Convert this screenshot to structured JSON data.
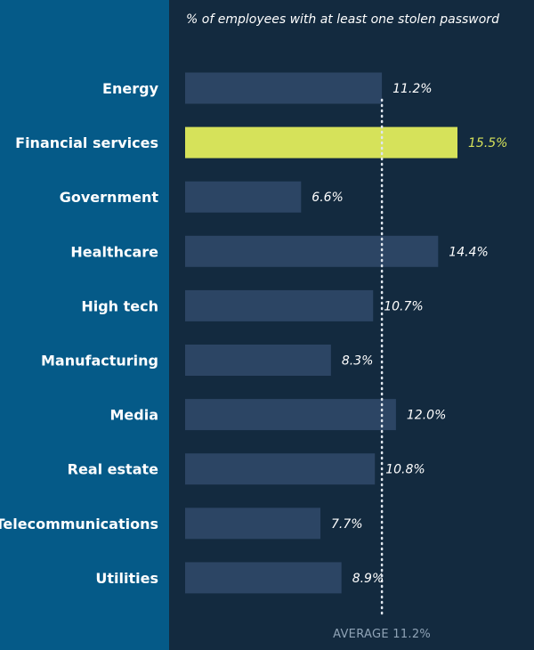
{
  "chart_data": {
    "type": "bar",
    "orientation": "horizontal",
    "title": "% of employees with at least one stolen password",
    "categories": [
      "Energy",
      "Financial services",
      "Government",
      "Healthcare",
      "High tech",
      "Manufacturing",
      "Media",
      "Real estate",
      "Telecommunications",
      "Utilities"
    ],
    "values": [
      11.2,
      15.5,
      6.6,
      14.4,
      10.7,
      8.3,
      12.0,
      10.8,
      7.7,
      8.9
    ],
    "value_labels": [
      "11.2%",
      "15.5%",
      "6.6%",
      "14.4%",
      "10.7%",
      "8.3%",
      "12.0%",
      "10.8%",
      "7.7%",
      "8.9%"
    ],
    "highlight_index": 1,
    "average": 11.2,
    "average_label": "AVERAGE 11.2%",
    "xlim": [
      0,
      15.5
    ],
    "grid": false,
    "legend": "none"
  },
  "colors": {
    "left_panel": "#055a88",
    "right_panel": "#132a3f",
    "bar": "#2c4564",
    "highlight_bar": "#d6e25a",
    "highlight_text": "#d6e25a",
    "average_line": "#dfe6ee",
    "average_label": "#8fa3b6"
  }
}
